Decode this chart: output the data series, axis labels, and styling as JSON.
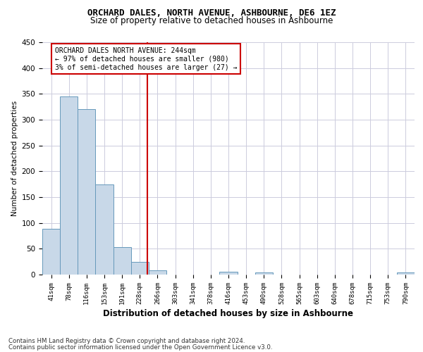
{
  "title": "ORCHARD DALES, NORTH AVENUE, ASHBOURNE, DE6 1EZ",
  "subtitle": "Size of property relative to detached houses in Ashbourne",
  "xlabel": "Distribution of detached houses by size in Ashbourne",
  "ylabel": "Number of detached properties",
  "bar_labels": [
    "41sqm",
    "78sqm",
    "116sqm",
    "153sqm",
    "191sqm",
    "228sqm",
    "266sqm",
    "303sqm",
    "341sqm",
    "378sqm",
    "416sqm",
    "453sqm",
    "490sqm",
    "528sqm",
    "565sqm",
    "603sqm",
    "640sqm",
    "678sqm",
    "715sqm",
    "753sqm",
    "790sqm"
  ],
  "bar_values": [
    88,
    345,
    321,
    174,
    53,
    25,
    8,
    0,
    0,
    0,
    5,
    0,
    4,
    0,
    0,
    0,
    0,
    0,
    0,
    0,
    4
  ],
  "bar_color": "#c8d8e8",
  "bar_edge_color": "#6699bb",
  "marker_color": "#cc0000",
  "annotation_title": "ORCHARD DALES NORTH AVENUE: 244sqm",
  "annotation_line1": "← 97% of detached houses are smaller (980)",
  "annotation_line2": "3% of semi-detached houses are larger (27) →",
  "annotation_box_color": "#ffffff",
  "annotation_box_edge": "#cc0000",
  "ylim": [
    0,
    450
  ],
  "yticks": [
    0,
    50,
    100,
    150,
    200,
    250,
    300,
    350,
    400,
    450
  ],
  "footer1": "Contains HM Land Registry data © Crown copyright and database right 2024.",
  "footer2": "Contains public sector information licensed under the Open Government Licence v3.0.",
  "background_color": "#ffffff",
  "grid_color": "#ccccdd",
  "title_fontsize": 9,
  "subtitle_fontsize": 8.5
}
